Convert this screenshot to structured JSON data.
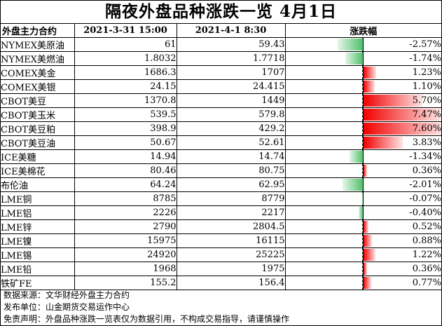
{
  "title": "隔夜外盘品种涨跌一览 4月1日",
  "headers": {
    "name": "外盘主力合约",
    "date1": "2021-3-31 15:00",
    "date2": "2021-4-1 8:30",
    "change": "涨跌幅"
  },
  "colors": {
    "up": "#f00000",
    "down": "#4fc06b"
  },
  "rows": [
    {
      "name": "NYMEX美原油",
      "v1": "61",
      "v2": "59.43",
      "pct": "-2.57%",
      "change": -2.57
    },
    {
      "name": "NYMEX美燃油",
      "v1": "1.8032",
      "v2": "1.7718",
      "pct": "-1.74%",
      "change": -1.74
    },
    {
      "name": "COMEX美金",
      "v1": "1686.3",
      "v2": "1707",
      "pct": "1.23%",
      "change": 1.23
    },
    {
      "name": "COMEX美银",
      "v1": "24.15",
      "v2": "24.415",
      "pct": "1.10%",
      "change": 1.1
    },
    {
      "name": "CBOT美豆",
      "v1": "1370.8",
      "v2": "1449",
      "pct": "5.70%",
      "change": 5.7
    },
    {
      "name": "CBOT美玉米",
      "v1": "539.5",
      "v2": "579.8",
      "pct": "7.47%",
      "change": 7.47
    },
    {
      "name": "CBOT美豆粕",
      "v1": "398.9",
      "v2": "429.2",
      "pct": "7.60%",
      "change": 7.6
    },
    {
      "name": "CBOT美豆油",
      "v1": "50.67",
      "v2": "52.61",
      "pct": "3.83%",
      "change": 3.83
    },
    {
      "name": "ICE美糖",
      "v1": "14.94",
      "v2": "14.74",
      "pct": "-1.34%",
      "change": -1.34
    },
    {
      "name": "ICE美棉花",
      "v1": "80.46",
      "v2": "80.75",
      "pct": "0.36%",
      "change": 0.36
    },
    {
      "name": "布伦油",
      "v1": "64.24",
      "v2": "62.95",
      "pct": "-2.01%",
      "change": -2.01
    },
    {
      "name": "LME铜",
      "v1": "8785",
      "v2": "8779",
      "pct": "-0.07%",
      "change": -0.07
    },
    {
      "name": "LME铝",
      "v1": "2226",
      "v2": "2217",
      "pct": "-0.40%",
      "change": -0.4
    },
    {
      "name": "LME锌",
      "v1": "2790",
      "v2": "2804.5",
      "pct": "0.52%",
      "change": 0.52
    },
    {
      "name": "LME镍",
      "v1": "15975",
      "v2": "16115",
      "pct": "0.88%",
      "change": 0.88
    },
    {
      "name": "LME锡",
      "v1": "24920",
      "v2": "25225",
      "pct": "1.22%",
      "change": 1.22
    },
    {
      "name": "LME铅",
      "v1": "1968",
      "v2": "1975",
      "pct": "0.36%",
      "change": 0.36
    },
    {
      "name": "铁矿FE",
      "v1": "155.2",
      "v2": "156.4",
      "pct": "0.77%",
      "change": 0.77
    }
  ],
  "footer": {
    "source": "数据来源：文华财经外盘主力合约",
    "publisher": "发布单位：山金期货交易运作中心",
    "disclaimer": "免责声明：外盘品种涨跌一览表仅为数据引用，不构成交易指导，请谨慎操作"
  }
}
